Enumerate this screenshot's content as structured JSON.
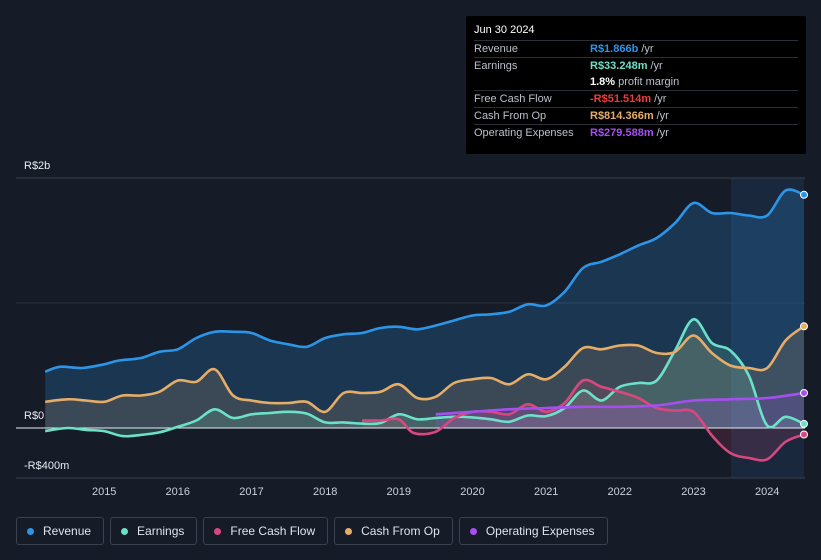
{
  "tooltip": {
    "date": "Jun 30 2024",
    "revenue": {
      "label": "Revenue",
      "value": "R$1.866b",
      "unit": "/yr"
    },
    "earnings": {
      "label": "Earnings",
      "value": "R$33.248m",
      "unit": "/yr"
    },
    "margin": {
      "value": "1.8%",
      "text": "profit margin"
    },
    "fcf": {
      "label": "Free Cash Flow",
      "value": "-R$51.514m",
      "unit": "/yr"
    },
    "cfo": {
      "label": "Cash From Op",
      "value": "R$814.366m",
      "unit": "/yr"
    },
    "opex": {
      "label": "Operating Expenses",
      "value": "R$279.588m",
      "unit": "/yr"
    }
  },
  "axis": {
    "top_label": "R$2b",
    "zero_label": "R$0",
    "bottom_label": "-R$400m"
  },
  "legend": [
    {
      "label": "Revenue",
      "color": "#2d95e8"
    },
    {
      "label": "Earnings",
      "color": "#6de0c8"
    },
    {
      "label": "Free Cash Flow",
      "color": "#d8487e"
    },
    {
      "label": "Cash From Op",
      "color": "#e6ad68"
    },
    {
      "label": "Operating Expenses",
      "color": "#a64ff0"
    }
  ],
  "chart_data": {
    "type": "area",
    "ylim": [
      -400,
      2000
    ],
    "y_unit": "R$ millions",
    "x_ticks": [
      "2015",
      "2016",
      "2017",
      "2018",
      "2019",
      "2020",
      "2021",
      "2022",
      "2023",
      "2024"
    ],
    "highlight_from": 2023.5,
    "series": [
      {
        "name": "Revenue",
        "color": "#2d95e8",
        "x": [
          2014.2,
          2014.4,
          2014.7,
          2015.0,
          2015.2,
          2015.5,
          2015.75,
          2016.0,
          2016.25,
          2016.5,
          2016.75,
          2017.0,
          2017.25,
          2017.5,
          2017.75,
          2018.0,
          2018.25,
          2018.5,
          2018.75,
          2019.0,
          2019.25,
          2019.5,
          2019.75,
          2020.0,
          2020.25,
          2020.5,
          2020.75,
          2021.0,
          2021.25,
          2021.5,
          2021.75,
          2022.0,
          2022.25,
          2022.5,
          2022.75,
          2023.0,
          2023.25,
          2023.5,
          2023.75,
          2024.0,
          2024.25,
          2024.5
        ],
        "y": [
          450,
          490,
          480,
          510,
          540,
          560,
          610,
          630,
          720,
          770,
          770,
          760,
          700,
          670,
          650,
          720,
          750,
          760,
          800,
          810,
          790,
          820,
          860,
          900,
          910,
          930,
          990,
          980,
          1090,
          1280,
          1330,
          1390,
          1460,
          1520,
          1640,
          1800,
          1720,
          1720,
          1700,
          1700,
          1900,
          1866
        ]
      },
      {
        "name": "Earnings",
        "color": "#6de0c8",
        "x": [
          2014.2,
          2014.5,
          2014.75,
          2015.0,
          2015.25,
          2015.5,
          2015.75,
          2016.0,
          2016.25,
          2016.5,
          2016.75,
          2017.0,
          2017.25,
          2017.5,
          2017.75,
          2018.0,
          2018.25,
          2018.5,
          2018.75,
          2019.0,
          2019.25,
          2019.5,
          2019.75,
          2020.0,
          2020.25,
          2020.5,
          2020.75,
          2021.0,
          2021.25,
          2021.5,
          2021.75,
          2022.0,
          2022.25,
          2022.5,
          2022.75,
          2023.0,
          2023.25,
          2023.5,
          2023.75,
          2024.0,
          2024.25,
          2024.5
        ],
        "y": [
          -25,
          0,
          -15,
          -25,
          -65,
          -55,
          -35,
          10,
          60,
          150,
          80,
          110,
          120,
          130,
          115,
          45,
          45,
          35,
          40,
          110,
          70,
          80,
          90,
          85,
          70,
          50,
          100,
          95,
          160,
          300,
          220,
          330,
          360,
          380,
          620,
          870,
          680,
          620,
          420,
          20,
          90,
          33
        ]
      },
      {
        "name": "Free Cash Flow",
        "color": "#d8487e",
        "x": [
          2018.5,
          2018.75,
          2019.0,
          2019.2,
          2019.5,
          2019.75,
          2020.0,
          2020.25,
          2020.5,
          2020.75,
          2021.0,
          2021.25,
          2021.5,
          2021.75,
          2022.0,
          2022.25,
          2022.5,
          2022.75,
          2023.0,
          2023.25,
          2023.5,
          2023.75,
          2024.0,
          2024.25,
          2024.5
        ],
        "y": [
          60,
          60,
          70,
          -40,
          -30,
          80,
          130,
          130,
          110,
          190,
          130,
          200,
          380,
          330,
          290,
          240,
          160,
          140,
          130,
          -60,
          -200,
          -240,
          -250,
          -110,
          -52
        ]
      },
      {
        "name": "Cash From Op",
        "color": "#e6ad68",
        "x": [
          2014.2,
          2014.5,
          2014.75,
          2015.0,
          2015.25,
          2015.5,
          2015.75,
          2016.0,
          2016.25,
          2016.5,
          2016.75,
          2017.0,
          2017.25,
          2017.5,
          2017.75,
          2018.0,
          2018.25,
          2018.5,
          2018.75,
          2019.0,
          2019.25,
          2019.5,
          2019.75,
          2020.0,
          2020.25,
          2020.5,
          2020.75,
          2021.0,
          2021.25,
          2021.5,
          2021.75,
          2022.0,
          2022.25,
          2022.5,
          2022.75,
          2023.0,
          2023.25,
          2023.5,
          2023.75,
          2024.0,
          2024.25,
          2024.5
        ],
        "y": [
          210,
          230,
          220,
          210,
          260,
          260,
          290,
          380,
          370,
          470,
          260,
          220,
          200,
          200,
          210,
          130,
          280,
          280,
          290,
          350,
          240,
          250,
          360,
          390,
          400,
          350,
          430,
          390,
          490,
          640,
          630,
          660,
          660,
          600,
          610,
          740,
          600,
          500,
          480,
          480,
          700,
          814
        ]
      },
      {
        "name": "Operating Expenses",
        "color": "#a64ff0",
        "x": [
          2019.5,
          2020.0,
          2020.5,
          2021.0,
          2021.5,
          2022.0,
          2022.5,
          2023.0,
          2023.5,
          2024.0,
          2024.5
        ],
        "y": [
          110,
          130,
          150,
          160,
          170,
          170,
          180,
          220,
          230,
          240,
          280
        ]
      }
    ]
  }
}
